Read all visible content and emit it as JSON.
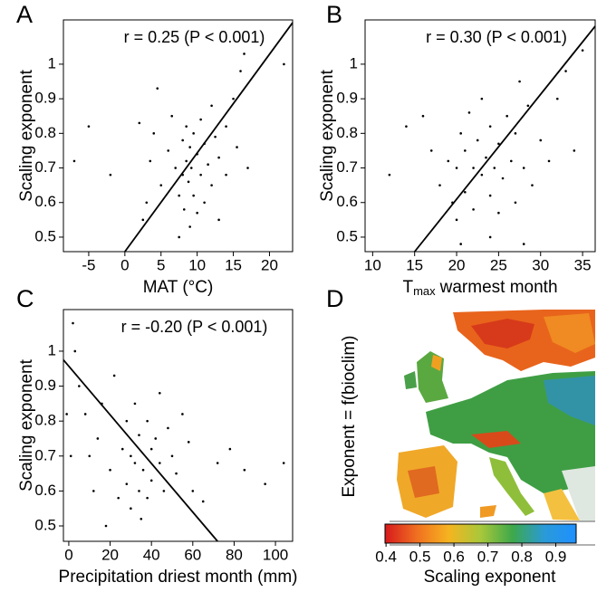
{
  "chart_data": [
    {
      "type": "scatter",
      "panel_label": "A",
      "annotation": "r = 0.25 (P < 0.001)",
      "xlabel": "MAT (°C)",
      "ylabel": "Scaling exponent",
      "color": "#000000",
      "x": [
        2,
        3,
        3.5,
        4,
        2.5,
        5,
        6,
        6.5,
        7,
        7.5,
        7.5,
        8,
        8,
        8.2,
        8.5,
        8.5,
        8.8,
        9,
        9,
        9.2,
        9.5,
        9.5,
        10,
        10,
        10.5,
        10.5,
        11,
        11,
        11.5,
        12,
        12,
        12.5,
        13,
        13,
        14,
        14,
        15,
        15.5,
        16,
        16.5,
        17,
        -5,
        -7,
        -2,
        4.5,
        22
      ],
      "y": [
        0.83,
        0.6,
        0.72,
        0.8,
        0.55,
        0.65,
        0.75,
        0.85,
        0.7,
        0.62,
        0.5,
        0.78,
        0.68,
        0.58,
        0.82,
        0.72,
        0.66,
        0.76,
        0.53,
        0.7,
        0.8,
        0.62,
        0.74,
        0.57,
        0.68,
        0.84,
        0.77,
        0.6,
        0.71,
        0.88,
        0.65,
        0.79,
        0.73,
        0.55,
        0.82,
        0.68,
        0.9,
        0.76,
        0.98,
        1.03,
        0.7,
        0.82,
        0.72,
        0.68,
        0.93,
        1.0
      ],
      "trend_line": {
        "x": [
          0,
          23.2
        ],
        "y": [
          0.458,
          1.12
        ]
      },
      "xlim": [
        -8.5,
        23.2
      ],
      "ylim": [
        0.458,
        1.128
      ],
      "xticks": [
        -5,
        0,
        5,
        10,
        15,
        20
      ],
      "yticks": [
        0.5,
        0.6,
        0.7,
        0.8,
        0.9,
        1
      ]
    },
    {
      "type": "scatter",
      "panel_label": "B",
      "annotation": "r = 0.30 (P < 0.001)",
      "xlabel": "T",
      "xlabel_sub": "max",
      "xlabel_rest": "warmest month",
      "ylabel": "Scaling exponent",
      "color": "#000000",
      "x": [
        12,
        14,
        16,
        17,
        18,
        19,
        19.5,
        20,
        20,
        20.5,
        20.5,
        21,
        21,
        21.5,
        22,
        22,
        22.5,
        23,
        23,
        23.5,
        24,
        24,
        24.5,
        25,
        25,
        25.5,
        26,
        26.5,
        27,
        27,
        27.5,
        28,
        28.5,
        29,
        30,
        31,
        32,
        33,
        34,
        35,
        24,
        28
      ],
      "y": [
        0.68,
        0.82,
        0.85,
        0.75,
        0.65,
        0.72,
        0.6,
        0.55,
        0.7,
        0.48,
        0.8,
        0.63,
        0.75,
        0.86,
        0.7,
        0.58,
        0.78,
        0.68,
        0.9,
        0.73,
        0.62,
        0.82,
        0.7,
        0.77,
        0.57,
        0.67,
        0.85,
        0.72,
        0.6,
        0.8,
        0.95,
        0.7,
        0.88,
        0.65,
        0.78,
        0.72,
        0.9,
        0.98,
        0.75,
        1.04,
        0.5,
        0.48
      ],
      "trend_line": {
        "x": [
          15,
          36.5
        ],
        "y": [
          0.458,
          1.11
        ]
      },
      "xlim": [
        9.1,
        36.5
      ],
      "ylim": [
        0.458,
        1.128
      ],
      "xticks": [
        10,
        15,
        20,
        25,
        30,
        35
      ],
      "yticks": [
        0.5,
        0.6,
        0.7,
        0.8,
        0.9,
        1
      ]
    },
    {
      "type": "scatter",
      "panel_label": "C",
      "annotation": "r = -0.20 (P < 0.001)",
      "xlabel": "Precipitation driest month (mm)",
      "ylabel": "Scaling exponent",
      "color": "#000000",
      "x": [
        2,
        3,
        5,
        8,
        10,
        12,
        14,
        16,
        18,
        20,
        22,
        24,
        26,
        28,
        28,
        30,
        30,
        32,
        32,
        34,
        34,
        35,
        36,
        38,
        38,
        40,
        40,
        42,
        44,
        44,
        46,
        48,
        50,
        52,
        55,
        58,
        60,
        65,
        72,
        78,
        85,
        95,
        104,
        1,
        -1
      ],
      "y": [
        1.08,
        1.0,
        0.9,
        0.82,
        0.7,
        0.6,
        0.75,
        0.85,
        0.5,
        0.66,
        0.93,
        0.58,
        0.72,
        0.8,
        0.62,
        0.55,
        0.7,
        0.68,
        0.85,
        0.6,
        0.76,
        0.52,
        0.66,
        0.8,
        0.58,
        0.72,
        0.63,
        0.75,
        0.68,
        0.88,
        0.6,
        0.78,
        0.7,
        0.65,
        0.82,
        0.74,
        0.6,
        0.57,
        0.68,
        0.72,
        0.66,
        0.62,
        0.68,
        0.7,
        0.82
      ],
      "trend_line": {
        "x": [
          -2.6,
          72
        ],
        "y": [
          0.975,
          0.456
        ]
      },
      "xlim": [
        -2.6,
        108.3
      ],
      "ylim": [
        0.456,
        1.119
      ],
      "xticks": [
        0,
        20,
        40,
        60,
        80,
        100
      ],
      "yticks": [
        0.5,
        0.6,
        0.7,
        0.8,
        0.9,
        1
      ]
    },
    {
      "type": "map",
      "panel_label": "D",
      "ylabel": "Exponent = f(bioclim)",
      "colorbar": {
        "label": "Scaling exponent",
        "lim": [
          0.397,
          0.96
        ],
        "ticks": [
          0.4,
          0.5,
          0.6,
          0.7,
          0.8,
          0.9
        ],
        "colors": [
          "#d7191c",
          "#f07020",
          "#f6b420",
          "#a8c83a",
          "#3ea84a",
          "#2a9ad8",
          "#1e90ff"
        ]
      }
    }
  ]
}
